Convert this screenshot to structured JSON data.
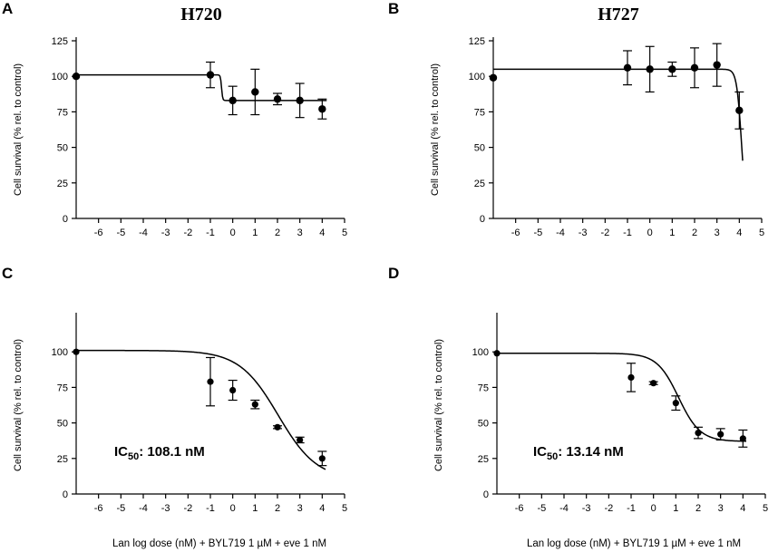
{
  "chart_data": [
    {
      "panel": "A",
      "type": "scatter",
      "title": "H720",
      "xlabel": "",
      "ylabel": "Cell survival (% rel. to control)",
      "xlim": [
        -7,
        5
      ],
      "ylim": [
        0,
        125
      ],
      "xticks": [
        -6,
        -5,
        -4,
        -3,
        -2,
        -1,
        0,
        1,
        2,
        3,
        4,
        5
      ],
      "yticks": [
        0,
        25,
        50,
        75,
        100,
        125
      ],
      "annotation": "",
      "points": [
        {
          "x": -7,
          "y": 100,
          "err": 0
        },
        {
          "x": -1,
          "y": 101,
          "err": 9
        },
        {
          "x": 0,
          "y": 83,
          "err": 10
        },
        {
          "x": 1,
          "y": 89,
          "err": 16
        },
        {
          "x": 2,
          "y": 84,
          "err": 4
        },
        {
          "x": 3,
          "y": 83,
          "err": 12
        },
        {
          "x": 4,
          "y": 77,
          "err": 7
        }
      ],
      "fit": {
        "kind": "step",
        "top": 101,
        "bottom": 83,
        "x50": -0.5
      }
    },
    {
      "panel": "B",
      "type": "scatter",
      "title": "H727",
      "xlabel": "",
      "ylabel": "Cell survival (% rel. to control)",
      "xlim": [
        -7,
        5
      ],
      "ylim": [
        0,
        125
      ],
      "xticks": [
        -6,
        -5,
        -4,
        -3,
        -2,
        -1,
        0,
        1,
        2,
        3,
        4,
        5
      ],
      "yticks": [
        0,
        25,
        50,
        75,
        100,
        125
      ],
      "annotation": "",
      "points": [
        {
          "x": -7,
          "y": 99,
          "err": 0
        },
        {
          "x": -1,
          "y": 106,
          "err": 12
        },
        {
          "x": 0,
          "y": 105,
          "err": 16
        },
        {
          "x": 1,
          "y": 105,
          "err": 5
        },
        {
          "x": 2,
          "y": 106,
          "err": 14
        },
        {
          "x": 3,
          "y": 108,
          "err": 15
        },
        {
          "x": 4,
          "y": 76,
          "err": 13
        }
      ],
      "fit": {
        "kind": "hill",
        "top": 105,
        "bottom": 0,
        "x50": 4.1,
        "slope": 4
      }
    },
    {
      "panel": "C",
      "type": "scatter",
      "title": "",
      "xlabel": "Lan log dose (nM) + BYL719 1 µM + eve 1 nM",
      "ylabel": "Cell survival (% rel. to control)",
      "xlim": [
        -7,
        5
      ],
      "ylim": [
        0,
        125
      ],
      "xticks": [
        -6,
        -5,
        -4,
        -3,
        -2,
        -1,
        0,
        1,
        2,
        3,
        4,
        5
      ],
      "yticks": [
        0,
        25,
        50,
        75,
        100
      ],
      "annotation": "IC50: 108.1 nM",
      "annotation_main": "IC",
      "annotation_sub": "50",
      "annotation_rest": ": 108.1 nM",
      "points": [
        {
          "x": -7,
          "y": 100,
          "err": 0
        },
        {
          "x": -1,
          "y": 79,
          "err": 17
        },
        {
          "x": 0,
          "y": 73,
          "err": 7
        },
        {
          "x": 1,
          "y": 63,
          "err": 3
        },
        {
          "x": 2,
          "y": 47,
          "err": 1
        },
        {
          "x": 3,
          "y": 38,
          "err": 2
        },
        {
          "x": 4,
          "y": 25,
          "err": 5
        }
      ],
      "fit": {
        "kind": "hill",
        "top": 101,
        "bottom": 10,
        "x50": 2.03,
        "slope": 0.5
      }
    },
    {
      "panel": "D",
      "type": "scatter",
      "title": "",
      "xlabel": "Lan log dose (nM) + BYL719 1 µM + eve 1 nM",
      "ylabel": "Cell survival (% rel. to control)",
      "xlim": [
        -7,
        5
      ],
      "ylim": [
        0,
        125
      ],
      "xticks": [
        -6,
        -5,
        -4,
        -3,
        -2,
        -1,
        0,
        1,
        2,
        3,
        4,
        5
      ],
      "yticks": [
        0,
        25,
        50,
        75,
        100
      ],
      "annotation": "IC50: 13.14 nM",
      "annotation_main": "IC",
      "annotation_sub": "50",
      "annotation_rest": ": 13.14 nM",
      "points": [
        {
          "x": -7,
          "y": 99,
          "err": 0
        },
        {
          "x": -1,
          "y": 82,
          "err": 10
        },
        {
          "x": 0,
          "y": 78,
          "err": 1
        },
        {
          "x": 1,
          "y": 64,
          "err": 5
        },
        {
          "x": 2,
          "y": 43,
          "err": 4
        },
        {
          "x": 3,
          "y": 42,
          "err": 4
        },
        {
          "x": 4,
          "y": 39,
          "err": 6
        }
      ],
      "fit": {
        "kind": "hill",
        "top": 99,
        "bottom": 37,
        "x50": 1.12,
        "slope": 0.9
      }
    }
  ]
}
